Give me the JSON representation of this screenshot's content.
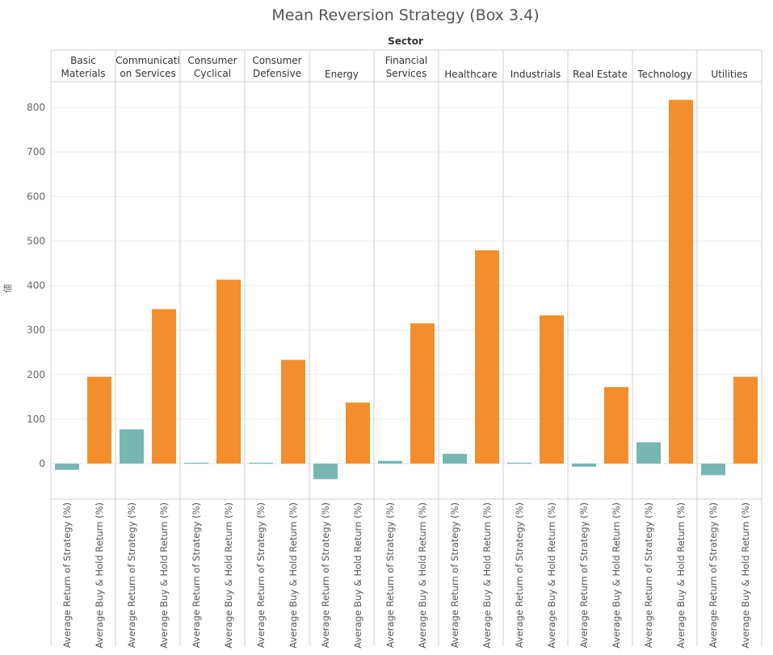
{
  "chart_data": {
    "type": "bar",
    "title": "Mean Reversion Strategy (Box 3.4)",
    "column_header": "Sector",
    "ylabel": "値",
    "ylim": [
      -80,
      850
    ],
    "yticks": [
      0,
      100,
      200,
      300,
      400,
      500,
      600,
      700,
      800
    ],
    "grid": true,
    "categories": [
      "Basic Materials",
      "Communication Services",
      "Consumer Cyclical",
      "Consumer Defensive",
      "Energy",
      "Financial Services",
      "Healthcare",
      "Industrials",
      "Real Estate",
      "Technology",
      "Utilities"
    ],
    "category_labels": [
      [
        "Basic",
        "Materials"
      ],
      [
        "Communicati",
        "on Services"
      ],
      [
        "Consumer",
        "Cyclical"
      ],
      [
        "Consumer",
        "Defensive"
      ],
      [
        "Energy"
      ],
      [
        "Financial",
        "Services"
      ],
      [
        "Healthcare"
      ],
      [
        "Industrials"
      ],
      [
        "Real Estate"
      ],
      [
        "Technology"
      ],
      [
        "Utilities"
      ]
    ],
    "series": [
      {
        "name": "Average Return of Strategy (%)",
        "color": "#76b7b2",
        "values": [
          -14,
          77,
          2,
          2,
          -35,
          6,
          22,
          2,
          -7,
          48,
          -26
        ]
      },
      {
        "name": "Average Buy & Hold Return (%)",
        "color": "#f28e2b",
        "values": [
          195,
          347,
          413,
          233,
          137,
          315,
          479,
          333,
          172,
          817,
          195
        ]
      }
    ]
  }
}
